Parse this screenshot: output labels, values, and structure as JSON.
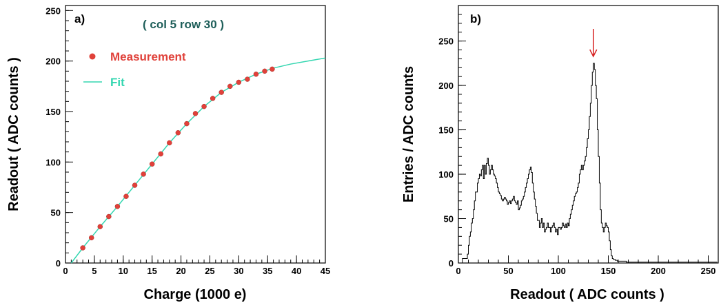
{
  "chart_data": [
    {
      "type": "scatter",
      "panel_label": "a)",
      "annotation": "( col 5 row 30 )",
      "xlabel": "Charge (1000 e)",
      "ylabel": "Readout ( ADC counts )",
      "xlim": [
        0,
        45
      ],
      "ylim": [
        0,
        255
      ],
      "x_ticks": [
        0,
        5,
        10,
        15,
        20,
        25,
        30,
        35,
        40,
        45
      ],
      "y_ticks": [
        0,
        50,
        100,
        150,
        200,
        250
      ],
      "grid": false,
      "legend_position": "top-left",
      "series": [
        {
          "name": "Measurement",
          "kind": "points",
          "color": "#e0413a",
          "x": [
            3.0,
            4.5,
            6.0,
            7.5,
            9.0,
            10.5,
            12.0,
            13.5,
            15.0,
            16.5,
            18.0,
            19.5,
            21.0,
            22.5,
            24.0,
            25.5,
            27.0,
            28.5,
            30.0,
            31.5,
            33.0,
            34.5,
            35.8
          ],
          "y": [
            15,
            25,
            36,
            46,
            56,
            66,
            77,
            88,
            98,
            108,
            119,
            129,
            138,
            148,
            155,
            163,
            169,
            175,
            179,
            182,
            187,
            190,
            192
          ]
        },
        {
          "name": "Fit",
          "kind": "line",
          "color": "#33d6b0",
          "x": [
            1.0,
            3.0,
            6.0,
            9.0,
            12.0,
            15.0,
            18.0,
            21.0,
            24.0,
            27.0,
            30.0,
            33.0,
            36.0,
            39.0,
            42.0,
            45.0
          ],
          "y": [
            0,
            15,
            36,
            56,
            77,
            98,
            119,
            138,
            155,
            169,
            179,
            187,
            193,
            197,
            200,
            203
          ]
        }
      ]
    },
    {
      "type": "histogram",
      "panel_label": "b)",
      "xlabel": "Readout ( ADC counts )",
      "ylabel": "Entries / ADC counts",
      "xlim": [
        0,
        260
      ],
      "ylim": [
        0,
        290
      ],
      "x_ticks": [
        0,
        50,
        100,
        150,
        200,
        250
      ],
      "y_ticks": [
        0,
        50,
        100,
        150,
        200,
        250
      ],
      "grid": false,
      "bin_width": 1,
      "line_color": "#000000",
      "peak_marker": {
        "x": 135,
        "color": "#d62020"
      },
      "counts": [
        0,
        0,
        0,
        0,
        5,
        5,
        5,
        5,
        5,
        10,
        20,
        30,
        35,
        45,
        50,
        60,
        70,
        80,
        80,
        90,
        95,
        100,
        98,
        105,
        110,
        95,
        110,
        100,
        112,
        118,
        110,
        100,
        105,
        110,
        105,
        100,
        98,
        95,
        90,
        85,
        80,
        78,
        76,
        72,
        70,
        72,
        74,
        72,
        70,
        66,
        68,
        70,
        67,
        70,
        72,
        75,
        70,
        68,
        66,
        70,
        60,
        62,
        65,
        70,
        72,
        75,
        80,
        85,
        90,
        95,
        100,
        105,
        108,
        102,
        90,
        80,
        72,
        64,
        56,
        48,
        48,
        40,
        45,
        50,
        40,
        45,
        35,
        38,
        40,
        45,
        40,
        40,
        35,
        40,
        42,
        45,
        40,
        35,
        38,
        32,
        40,
        40,
        38,
        40,
        45,
        42,
        40,
        44,
        40,
        45,
        42,
        50,
        55,
        60,
        65,
        70,
        75,
        78,
        80,
        85,
        90,
        100,
        105,
        110,
        105,
        110,
        115,
        120,
        130,
        140,
        150,
        165,
        180,
        200,
        215,
        225,
        218,
        200,
        185,
        150,
        120,
        90,
        60,
        45,
        40,
        35,
        40,
        45,
        42,
        40,
        35,
        25,
        15,
        8,
        5,
        4,
        4,
        3,
        3,
        2,
        2,
        2,
        2,
        2,
        2,
        2,
        2,
        2,
        1,
        1,
        1,
        1,
        1,
        1,
        1,
        1,
        1,
        1,
        1,
        1,
        1,
        1,
        1,
        1,
        1,
        1,
        1,
        1,
        1,
        1,
        1,
        1,
        1,
        1,
        1,
        1,
        1,
        1,
        1,
        1,
        1,
        1,
        1,
        1,
        1,
        1,
        1,
        1,
        1,
        1,
        1,
        1,
        1,
        1,
        1,
        1,
        1,
        1,
        1,
        1,
        1,
        1,
        1,
        1,
        1,
        1,
        1,
        1,
        1,
        1,
        1,
        1,
        1,
        1,
        1,
        1,
        1,
        1,
        1,
        1,
        1,
        1,
        1,
        1,
        1,
        1,
        1,
        1,
        1,
        1,
        1,
        1,
        1,
        1,
        1,
        1,
        1,
        1,
        1
      ]
    }
  ]
}
